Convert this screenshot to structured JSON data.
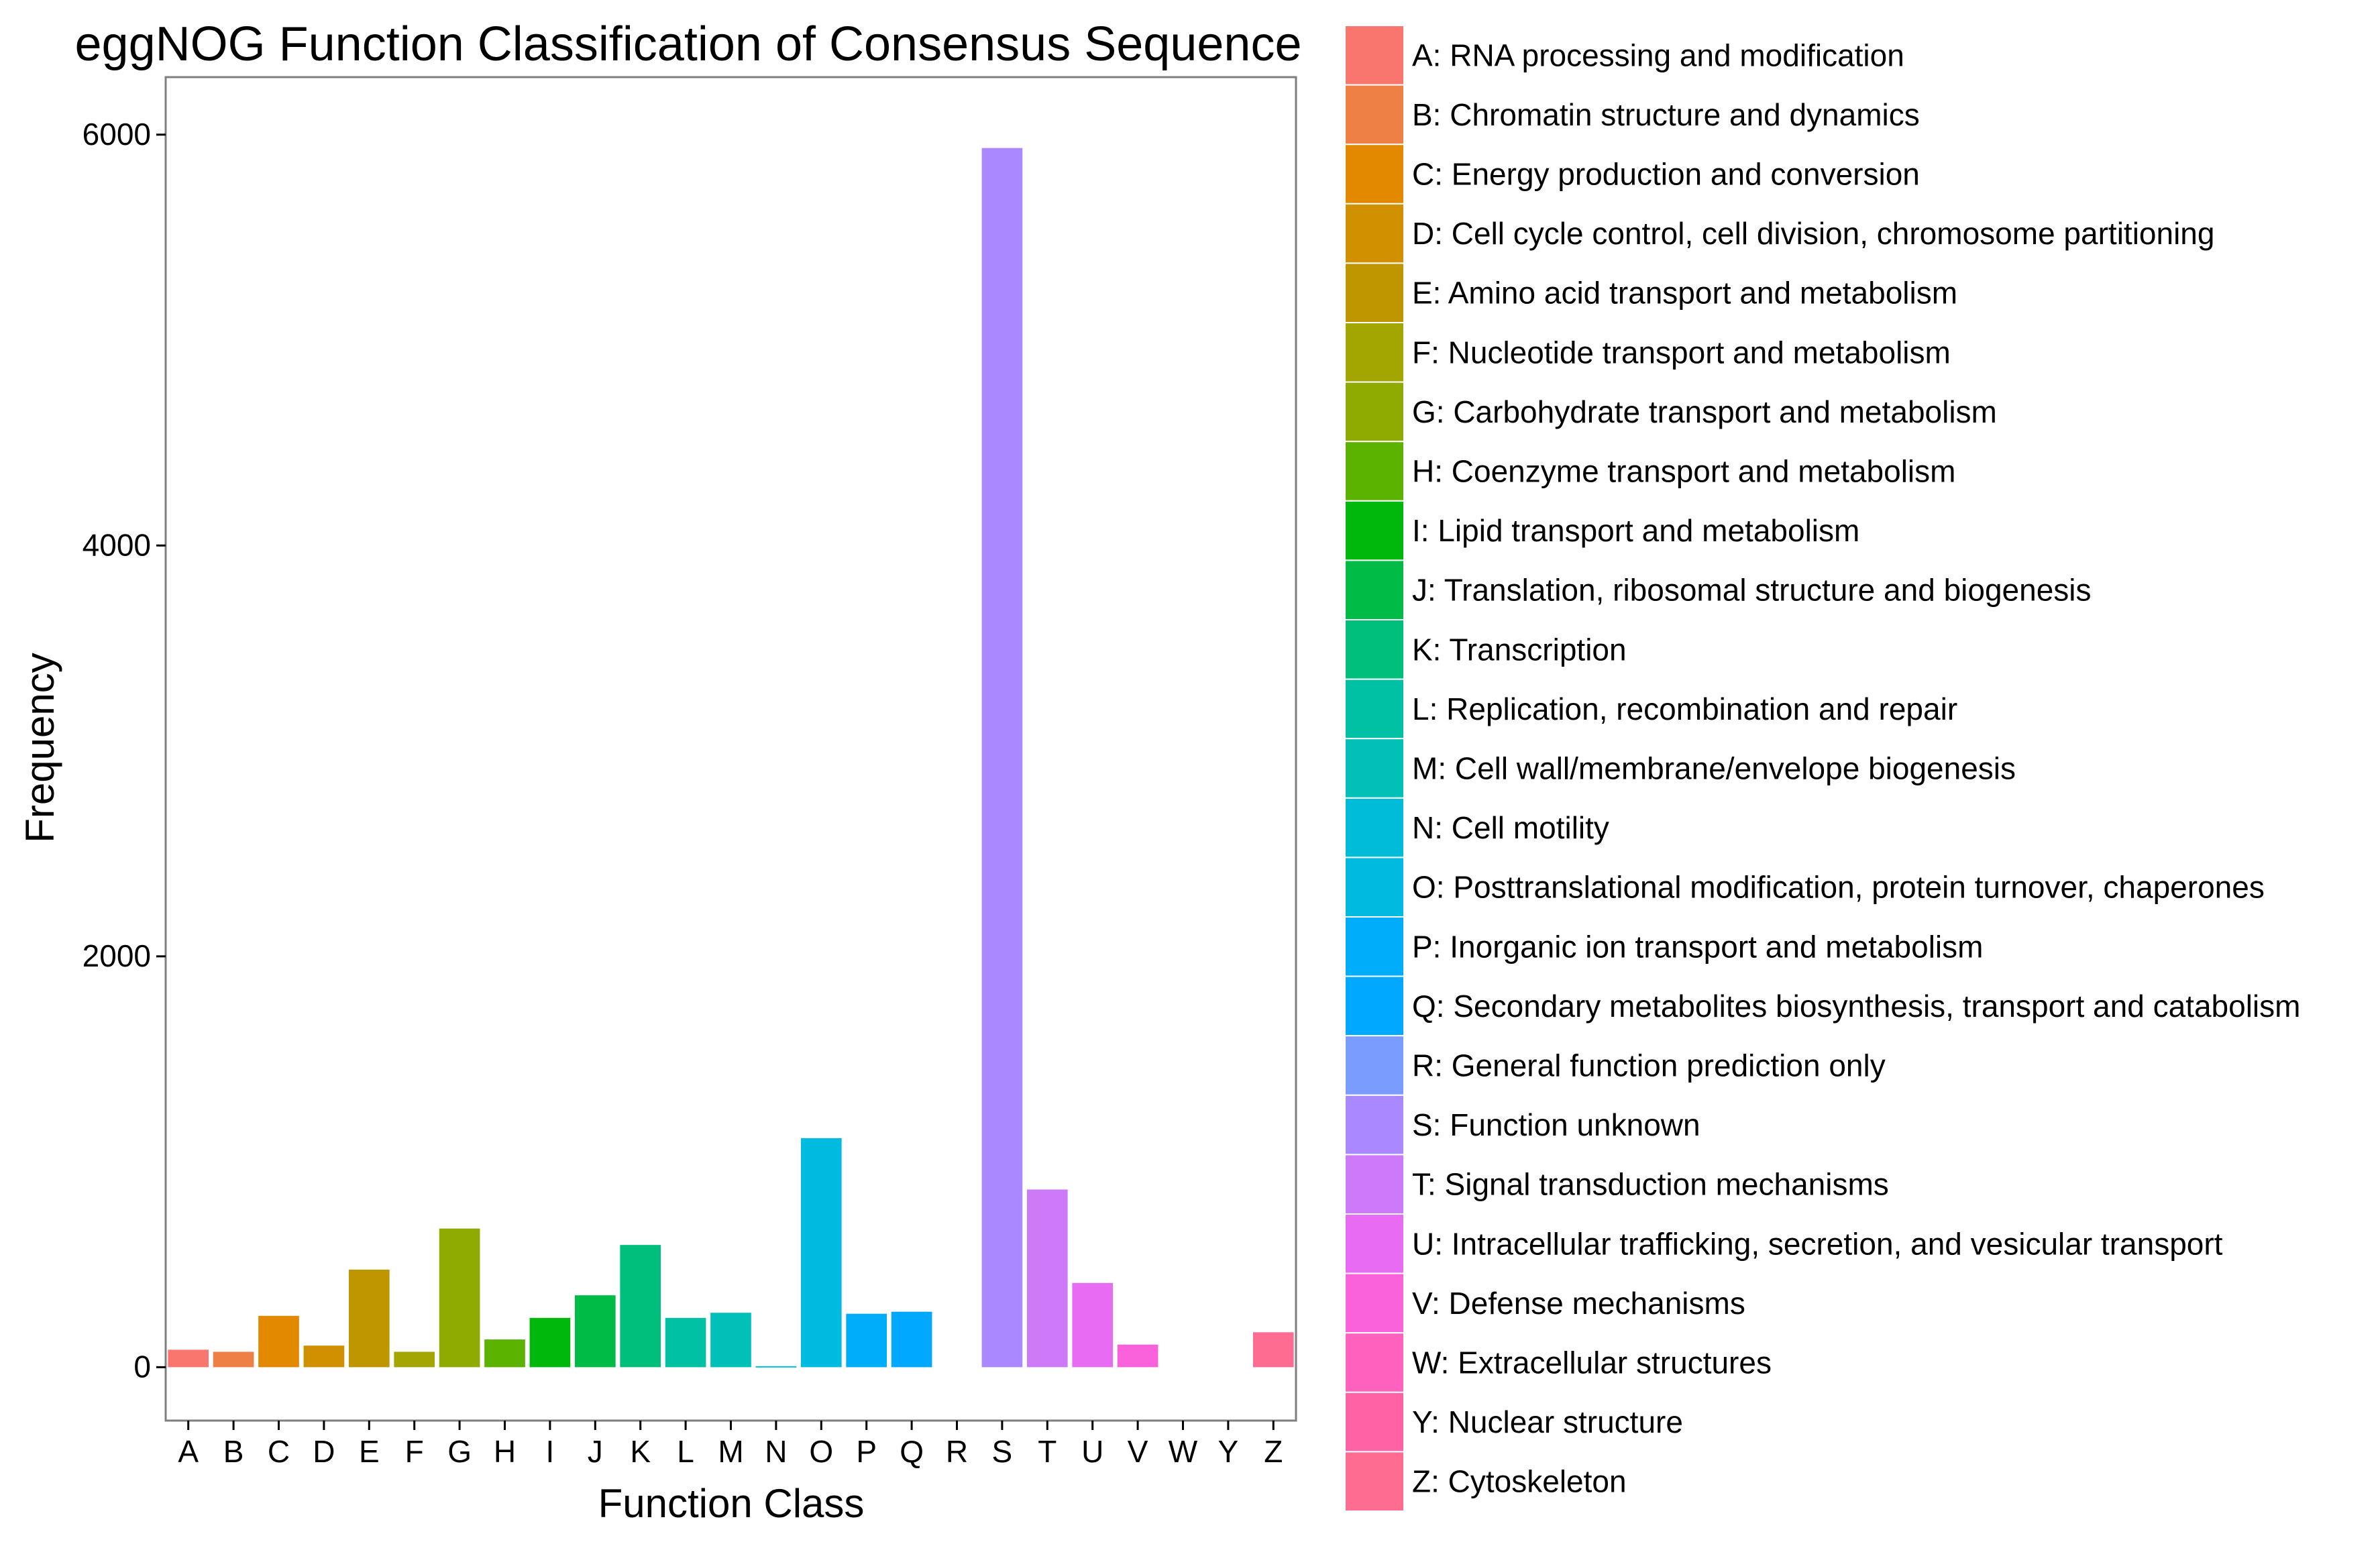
{
  "chart_data": {
    "type": "bar",
    "title": "eggNOG Function Classification of Consensus Sequence",
    "xlabel": "Function Class",
    "ylabel": "Frequency",
    "ylim": [
      -260,
      6280
    ],
    "yticks": [
      0,
      2000,
      4000,
      6000
    ],
    "grid": false,
    "legend_position": "right",
    "categories": [
      "A",
      "B",
      "C",
      "D",
      "E",
      "F",
      "G",
      "H",
      "I",
      "J",
      "K",
      "L",
      "M",
      "N",
      "O",
      "P",
      "Q",
      "R",
      "S",
      "T",
      "U",
      "V",
      "W",
      "Y",
      "Z"
    ],
    "values": [
      85,
      75,
      250,
      105,
      475,
      75,
      675,
      135,
      240,
      350,
      595,
      240,
      265,
      5,
      1115,
      260,
      270,
      0,
      5935,
      865,
      410,
      110,
      0,
      0,
      170
    ],
    "colors": [
      "#F8766D",
      "#EE8045",
      "#E38900",
      "#D09000",
      "#BF9600",
      "#A3A500",
      "#8FAA00",
      "#5BB300",
      "#00B70C",
      "#00BC47",
      "#00BF7D",
      "#00C1A3",
      "#00C0B8",
      "#00BCD8",
      "#00BAE0",
      "#00ADFA",
      "#00A9FF",
      "#7A9CFF",
      "#AA88FF",
      "#CD7AF9",
      "#E76BF3",
      "#FA62DB",
      "#FF62BE",
      "#FF63A5",
      "#FF6C91"
    ],
    "legend": [
      "A: RNA processing and modification",
      "B: Chromatin structure and dynamics",
      "C: Energy production and conversion",
      "D: Cell cycle control, cell division, chromosome partitioning",
      "E: Amino acid transport and metabolism",
      "F: Nucleotide transport and metabolism",
      "G: Carbohydrate transport and metabolism",
      "H: Coenzyme transport and metabolism",
      "I: Lipid transport and metabolism",
      "J: Translation, ribosomal structure and biogenesis",
      "K: Transcription",
      "L: Replication, recombination and repair",
      "M: Cell wall/membrane/envelope biogenesis",
      "N: Cell motility",
      "O: Posttranslational modification, protein turnover, chaperones",
      "P: Inorganic ion transport and metabolism",
      "Q: Secondary metabolites biosynthesis, transport and catabolism",
      "R: General function prediction only",
      "S: Function unknown",
      "T: Signal transduction mechanisms",
      "U: Intracellular trafficking, secretion, and vesicular transport",
      "V: Defense mechanisms",
      "W: Extracellular structures",
      "Y: Nuclear structure",
      "Z: Cytoskeleton"
    ]
  }
}
